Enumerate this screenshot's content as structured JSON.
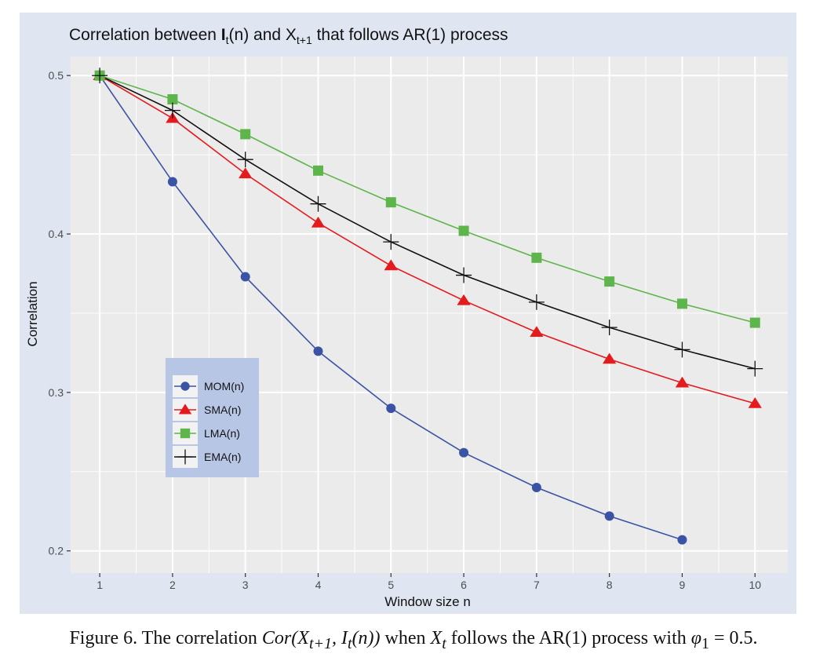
{
  "chart_data": {
    "type": "line",
    "title": {
      "prefix": "Correlation between ",
      "sym1": "I",
      "sub1": "t",
      "paren1": "(n)",
      "mid": " and X",
      "sub2": "t+1",
      "suffix": " that follows AR(1) process"
    },
    "xlabel": "Window size n",
    "ylabel": "Correlation",
    "x": [
      1,
      2,
      3,
      4,
      5,
      6,
      7,
      8,
      9,
      10
    ],
    "x_ticks": [
      "1",
      "2",
      "3",
      "4",
      "5",
      "6",
      "7",
      "8",
      "9",
      "10"
    ],
    "y_ticks": [
      "0.2",
      "0.3",
      "0.4",
      "0.5"
    ],
    "y_tick_values": [
      0.2,
      0.3,
      0.4,
      0.5
    ],
    "xlim": [
      0.6,
      10.45
    ],
    "ylim": [
      0.186,
      0.512
    ],
    "grid": true,
    "legend_position": "left-bottom inside",
    "series": [
      {
        "name": "MOM(n)",
        "marker": "circle",
        "color": "#3a53a4",
        "values": [
          0.5,
          0.433,
          0.373,
          0.326,
          0.29,
          0.262,
          0.24,
          0.222,
          0.207,
          null
        ]
      },
      {
        "name": "SMA(n)",
        "marker": "triangle",
        "color": "#e41a1c",
        "values": [
          0.5,
          0.473,
          0.438,
          0.407,
          0.38,
          0.358,
          0.338,
          0.321,
          0.306,
          0.293
        ]
      },
      {
        "name": "LMA(n)",
        "marker": "square",
        "color": "#5db54b",
        "values": [
          0.5,
          0.485,
          0.463,
          0.44,
          0.42,
          0.402,
          0.385,
          0.37,
          0.356,
          0.344
        ]
      },
      {
        "name": "EMA(n)",
        "marker": "plus",
        "color": "#111111",
        "values": [
          0.5,
          0.478,
          0.447,
          0.419,
          0.395,
          0.374,
          0.357,
          0.341,
          0.327,
          0.315
        ]
      }
    ],
    "colors": {
      "outer_background": "#dfe6f2",
      "panel_background": "#ebebeb",
      "grid": "#ffffff",
      "legend_background": "#b8c6e5"
    }
  },
  "caption": {
    "lead": "Figure 6.  The correlation ",
    "expr1": "Cor",
    "expr2": "(X",
    "expr2_sub": "t+1",
    "expr3": ", I",
    "expr3_sub": "t",
    "expr4": "(n))",
    "mid": " when ",
    "var": "X",
    "var_sub": "t",
    "tail": " follows the AR(1) process with ",
    "phi": "φ",
    "phi_sub": "1",
    "value": " = 0.5."
  }
}
